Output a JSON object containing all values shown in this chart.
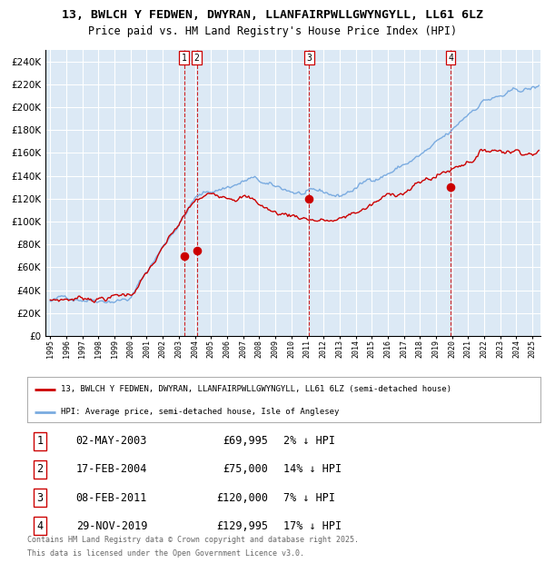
{
  "title1": "13, BWLCH Y FEDWEN, DWYRAN, LLANFAIRPWLLGWYNGYLL, LL61 6LZ",
  "title2": "Price paid vs. HM Land Registry's House Price Index (HPI)",
  "legend_red": "13, BWLCH Y FEDWEN, DWYRAN, LLANFAIRPWLLGWYNGYLL, LL61 6LZ (semi-detached house)",
  "legend_blue": "HPI: Average price, semi-detached house, Isle of Anglesey",
  "footnote1": "Contains HM Land Registry data © Crown copyright and database right 2025.",
  "footnote2": "This data is licensed under the Open Government Licence v3.0.",
  "transactions": [
    {
      "num": 1,
      "date": "02-MAY-2003",
      "price": "£69,995",
      "pct": "2%",
      "direction": "↓"
    },
    {
      "num": 2,
      "date": "17-FEB-2004",
      "price": "£75,000",
      "pct": "14%",
      "direction": "↓"
    },
    {
      "num": 3,
      "date": "08-FEB-2011",
      "price": "£120,000",
      "pct": "7%",
      "direction": "↓"
    },
    {
      "num": 4,
      "date": "29-NOV-2019",
      "price": "£129,995",
      "pct": "17%",
      "direction": "↓"
    }
  ],
  "vline_dates": [
    2003.33,
    2004.12,
    2011.1,
    2019.91
  ],
  "transaction_marker_dates": [
    2003.33,
    2004.12,
    2011.1,
    2019.91
  ],
  "transaction_marker_prices": [
    69995,
    75000,
    120000,
    129995
  ],
  "ylim": [
    0,
    250000
  ],
  "xlim_start": 1994.7,
  "xlim_end": 2025.5,
  "red_color": "#cc0000",
  "blue_color": "#7aabe0",
  "plot_bg": "#dce9f5",
  "grid_color": "#ffffff",
  "vline_color": "#cc0000"
}
